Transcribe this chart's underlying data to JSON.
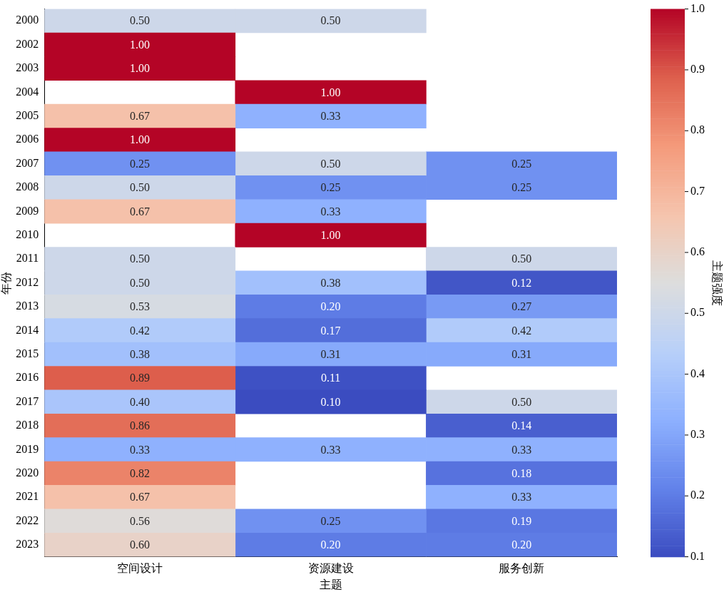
{
  "chart_data": {
    "type": "heatmap",
    "xlabel": "主题",
    "ylabel": "年份",
    "clabel": "主题强度",
    "categories": [
      "空间设计",
      "资源建设",
      "服务创新"
    ],
    "y_categories": [
      "2000",
      "2002",
      "2003",
      "2004",
      "2005",
      "2006",
      "2007",
      "2008",
      "2009",
      "2010",
      "2011",
      "2012",
      "2013",
      "2014",
      "2015",
      "2016",
      "2017",
      "2018",
      "2019",
      "2020",
      "2021",
      "2022",
      "2023"
    ],
    "cells": [
      [
        0.5,
        0.5,
        null
      ],
      [
        1.0,
        null,
        null
      ],
      [
        1.0,
        null,
        null
      ],
      [
        null,
        1.0,
        null
      ],
      [
        0.67,
        0.33,
        null
      ],
      [
        1.0,
        null,
        null
      ],
      [
        0.25,
        0.5,
        0.25
      ],
      [
        0.5,
        0.25,
        0.25
      ],
      [
        0.67,
        0.33,
        null
      ],
      [
        null,
        1.0,
        null
      ],
      [
        0.5,
        null,
        0.5
      ],
      [
        0.5,
        0.38,
        0.12
      ],
      [
        0.53,
        0.2,
        0.27
      ],
      [
        0.42,
        0.17,
        0.42
      ],
      [
        0.38,
        0.31,
        0.31
      ],
      [
        0.89,
        0.11,
        null
      ],
      [
        0.4,
        0.1,
        0.5
      ],
      [
        0.86,
        null,
        0.14
      ],
      [
        0.33,
        0.33,
        0.33
      ],
      [
        0.82,
        null,
        0.18
      ],
      [
        0.67,
        null,
        0.33
      ],
      [
        0.56,
        0.25,
        0.19
      ],
      [
        0.6,
        0.2,
        0.2
      ]
    ],
    "cell_labels": [
      [
        "0.50",
        "0.50",
        null
      ],
      [
        "1.00",
        null,
        null
      ],
      [
        "1.00",
        null,
        null
      ],
      [
        null,
        "1.00",
        null
      ],
      [
        "0.67",
        "0.33",
        null
      ],
      [
        "1.00",
        null,
        null
      ],
      [
        "0.25",
        "0.50",
        "0.25"
      ],
      [
        "0.50",
        "0.25",
        "0.25"
      ],
      [
        "0.67",
        "0.33",
        null
      ],
      [
        null,
        "1.00",
        null
      ],
      [
        "0.50",
        null,
        "0.50"
      ],
      [
        "0.50",
        "0.38",
        "0.12"
      ],
      [
        "0.53",
        "0.20",
        "0.27"
      ],
      [
        "0.42",
        "0.17",
        "0.42"
      ],
      [
        "0.38",
        "0.31",
        "0.31"
      ],
      [
        "0.89",
        "0.11",
        null
      ],
      [
        "0.40",
        "0.10",
        "0.50"
      ],
      [
        "0.86",
        null,
        "0.14"
      ],
      [
        "0.33",
        "0.33",
        "0.33"
      ],
      [
        "0.82",
        null,
        "0.18"
      ],
      [
        "0.67",
        null,
        "0.33"
      ],
      [
        "0.56",
        "0.25",
        "0.19"
      ],
      [
        "0.60",
        "0.20",
        "0.20"
      ]
    ],
    "clim": [
      0.1,
      1.0
    ],
    "cticks": [
      0.1,
      0.2,
      0.3,
      0.4,
      0.5,
      0.6,
      0.7,
      0.8,
      0.9,
      {
        "value": 1.0,
        "label": "1.0"
      }
    ]
  }
}
